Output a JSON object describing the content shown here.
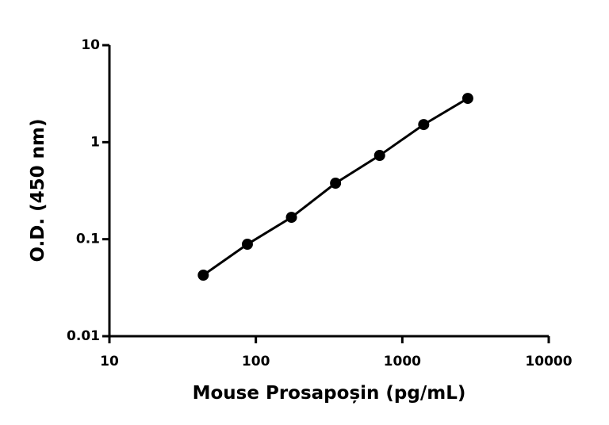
{
  "chart_data": {
    "type": "scatter",
    "xlabel": "Mouse Prosapoșin (pg/mL)",
    "ylabel": "O.D. (450 nm)",
    "x": [
      43.75,
      87.5,
      175,
      350,
      700,
      1400,
      2800
    ],
    "series": [
      {
        "color": "#000000",
        "values": [
          0.0426,
          0.0887,
          0.168,
          0.378,
          0.73,
          1.52,
          2.83
        ]
      }
    ],
    "xscale": "log",
    "yscale": "log",
    "xlim": [
      10,
      10000
    ],
    "ylim": [
      0.01,
      10
    ],
    "xticks": [
      10,
      100,
      1000,
      10000
    ],
    "yticks": [
      0.01,
      0.1,
      1,
      10
    ],
    "line": true,
    "grid": false
  }
}
